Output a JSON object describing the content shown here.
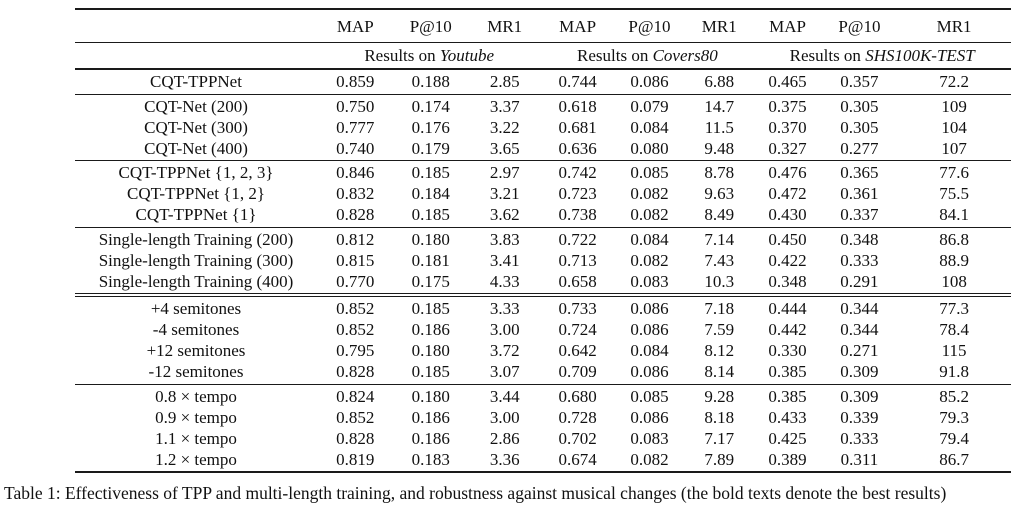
{
  "caption": "Table 1: Effectiveness of TPP and multi-length training, and robustness against musical changes (the bold texts denote the best results)",
  "table": {
    "metric_headers": [
      "MAP",
      "P@10",
      "MR1",
      "MAP",
      "P@10",
      "MR1",
      "MAP",
      "P@10",
      "MR1"
    ],
    "group_headers": [
      {
        "prefix": "Results on",
        "dataset": "Youtube"
      },
      {
        "prefix": "Results on",
        "dataset": "Covers80"
      },
      {
        "prefix": "Results on",
        "dataset": "SHS100K-TEST"
      }
    ],
    "sections": [
      {
        "rule_after": "single",
        "rows": [
          {
            "label": "CQT-TPPNet",
            "values": [
              "0.859",
              "0.188",
              "2.85",
              "0.744",
              "0.086",
              "6.88",
              "0.465",
              "0.357",
              "72.2"
            ],
            "bold": [
              0,
              1,
              2,
              3,
              4,
              5,
              8
            ]
          }
        ]
      },
      {
        "rule_after": "single",
        "rows": [
          {
            "label": "CQT-Net (200)",
            "values": [
              "0.750",
              "0.174",
              "3.37",
              "0.618",
              "0.079",
              "14.7",
              "0.375",
              "0.305",
              "109"
            ],
            "bold": []
          },
          {
            "label": "CQT-Net (300)",
            "values": [
              "0.777",
              "0.176",
              "3.22",
              "0.681",
              "0.084",
              "11.5",
              "0.370",
              "0.305",
              "104"
            ],
            "bold": []
          },
          {
            "label": "CQT-Net (400)",
            "values": [
              "0.740",
              "0.179",
              "3.65",
              "0.636",
              "0.080",
              "9.48",
              "0.327",
              "0.277",
              "107"
            ],
            "bold": []
          }
        ]
      },
      {
        "rule_after": "single",
        "rows": [
          {
            "label": "CQT-TPPNet {1, 2, 3}",
            "values": [
              "0.846",
              "0.185",
              "2.97",
              "0.742",
              "0.085",
              "8.78",
              "0.476",
              "0.365",
              "77.6"
            ],
            "bold": [
              6,
              7
            ]
          },
          {
            "label": "CQT-TPPNet {1, 2}",
            "values": [
              "0.832",
              "0.184",
              "3.21",
              "0.723",
              "0.082",
              "9.63",
              "0.472",
              "0.361",
              "75.5"
            ],
            "bold": []
          },
          {
            "label": "CQT-TPPNet {1}",
            "values": [
              "0.828",
              "0.185",
              "3.62",
              "0.738",
              "0.082",
              "8.49",
              "0.430",
              "0.337",
              "84.1"
            ],
            "bold": []
          }
        ]
      },
      {
        "rule_after": "double",
        "rows": [
          {
            "label": "Single-length Training (200)",
            "values": [
              "0.812",
              "0.180",
              "3.83",
              "0.722",
              "0.084",
              "7.14",
              "0.450",
              "0.348",
              "86.8"
            ],
            "bold": []
          },
          {
            "label": "Single-length Training (300)",
            "values": [
              "0.815",
              "0.181",
              "3.41",
              "0.713",
              "0.082",
              "7.43",
              "0.422",
              "0.333",
              "88.9"
            ],
            "bold": []
          },
          {
            "label": "Single-length Training (400)",
            "values": [
              "0.770",
              "0.175",
              "4.33",
              "0.658",
              "0.083",
              "10.3",
              "0.348",
              "0.291",
              "108"
            ],
            "bold": []
          }
        ]
      },
      {
        "rule_after": "single",
        "rows": [
          {
            "label": "+4 semitones",
            "values": [
              "0.852",
              "0.185",
              "3.33",
              "0.733",
              "0.086",
              "7.18",
              "0.444",
              "0.344",
              "77.3"
            ],
            "bold": []
          },
          {
            "label": "-4 semitones",
            "values": [
              "0.852",
              "0.186",
              "3.00",
              "0.724",
              "0.086",
              "7.59",
              "0.442",
              "0.344",
              "78.4"
            ],
            "bold": []
          },
          {
            "label": "+12 semitones",
            "values": [
              "0.795",
              "0.180",
              "3.72",
              "0.642",
              "0.084",
              "8.12",
              "0.330",
              "0.271",
              "115"
            ],
            "bold": []
          },
          {
            "label": "-12 semitones",
            "values": [
              "0.828",
              "0.185",
              "3.07",
              "0.709",
              "0.086",
              "8.14",
              "0.385",
              "0.309",
              "91.8"
            ],
            "bold": []
          }
        ]
      },
      {
        "rule_after": "none",
        "rows": [
          {
            "label": "0.8 × tempo",
            "values": [
              "0.824",
              "0.180",
              "3.44",
              "0.680",
              "0.085",
              "9.28",
              "0.385",
              "0.309",
              "85.2"
            ],
            "bold": []
          },
          {
            "label": "0.9 × tempo",
            "values": [
              "0.852",
              "0.186",
              "3.00",
              "0.728",
              "0.086",
              "8.18",
              "0.433",
              "0.339",
              "79.3"
            ],
            "bold": []
          },
          {
            "label": "1.1 × tempo",
            "values": [
              "0.828",
              "0.186",
              "2.86",
              "0.702",
              "0.083",
              "7.17",
              "0.425",
              "0.333",
              "79.4"
            ],
            "bold": []
          },
          {
            "label": "1.2 × tempo",
            "values": [
              "0.819",
              "0.183",
              "3.36",
              "0.674",
              "0.082",
              "7.89",
              "0.389",
              "0.311",
              "86.7"
            ],
            "bold": []
          }
        ]
      }
    ]
  }
}
